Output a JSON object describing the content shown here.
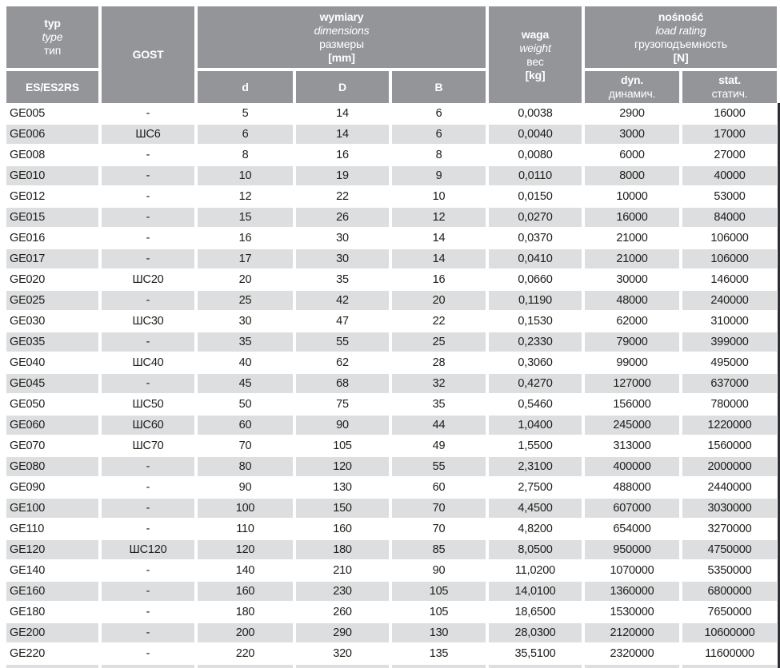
{
  "colors": {
    "header_bg": "#939598",
    "stripe_bg": "#dcdedf",
    "text": "#1d1d1b",
    "header_text": "#ffffff",
    "edge_line": "#2f2f33"
  },
  "header": {
    "typ": {
      "l1": "typ",
      "l2": "type",
      "l3": "тип"
    },
    "series": "ES/ES2RS",
    "gost": "GOST",
    "dims": {
      "l1": "wymiary",
      "l2": "dimensions",
      "l3": "размеры",
      "l4": "[mm]"
    },
    "d": "d",
    "D": "D",
    "B": "B",
    "weight": {
      "l1": "waga",
      "l2": "weight",
      "l3": "вес",
      "l4": "[kg]"
    },
    "load": {
      "l1": "nośność",
      "l2": "load rating",
      "l3": "грузоподъемность",
      "l4": "[N]"
    },
    "dyn": {
      "l1": "dyn.",
      "l2": "динамич."
    },
    "stat": {
      "l1": "stat.",
      "l2": "статич."
    }
  },
  "columns": [
    "type",
    "gost",
    "d",
    "D",
    "B",
    "weight",
    "dyn",
    "stat"
  ],
  "rows": [
    [
      "GE005",
      "-",
      "5",
      "14",
      "6",
      "0,0038",
      "2900",
      "16000"
    ],
    [
      "GE006",
      "ШС6",
      "6",
      "14",
      "6",
      "0,0040",
      "3000",
      "17000"
    ],
    [
      "GE008",
      "-",
      "8",
      "16",
      "8",
      "0,0080",
      "6000",
      "27000"
    ],
    [
      "GE010",
      "-",
      "10",
      "19",
      "9",
      "0,0110",
      "8000",
      "40000"
    ],
    [
      "GE012",
      "-",
      "12",
      "22",
      "10",
      "0,0150",
      "10000",
      "53000"
    ],
    [
      "GE015",
      "-",
      "15",
      "26",
      "12",
      "0,0270",
      "16000",
      "84000"
    ],
    [
      "GE016",
      "-",
      "16",
      "30",
      "14",
      "0,0370",
      "21000",
      "106000"
    ],
    [
      "GE017",
      "-",
      "17",
      "30",
      "14",
      "0,0410",
      "21000",
      "106000"
    ],
    [
      "GE020",
      "ШС20",
      "20",
      "35",
      "16",
      "0,0660",
      "30000",
      "146000"
    ],
    [
      "GE025",
      "-",
      "25",
      "42",
      "20",
      "0,1190",
      "48000",
      "240000"
    ],
    [
      "GE030",
      "ШС30",
      "30",
      "47",
      "22",
      "0,1530",
      "62000",
      "310000"
    ],
    [
      "GE035",
      "-",
      "35",
      "55",
      "25",
      "0,2330",
      "79000",
      "399000"
    ],
    [
      "GE040",
      "ШС40",
      "40",
      "62",
      "28",
      "0,3060",
      "99000",
      "495000"
    ],
    [
      "GE045",
      "-",
      "45",
      "68",
      "32",
      "0,4270",
      "127000",
      "637000"
    ],
    [
      "GE050",
      "ШС50",
      "50",
      "75",
      "35",
      "0,5460",
      "156000",
      "780000"
    ],
    [
      "GE060",
      "ШС60",
      "60",
      "90",
      "44",
      "1,0400",
      "245000",
      "1220000"
    ],
    [
      "GE070",
      "ШС70",
      "70",
      "105",
      "49",
      "1,5500",
      "313000",
      "1560000"
    ],
    [
      "GE080",
      "-",
      "80",
      "120",
      "55",
      "2,3100",
      "400000",
      "2000000"
    ],
    [
      "GE090",
      "-",
      "90",
      "130",
      "60",
      "2,7500",
      "488000",
      "2440000"
    ],
    [
      "GE100",
      "-",
      "100",
      "150",
      "70",
      "4,4500",
      "607000",
      "3030000"
    ],
    [
      "GE110",
      "-",
      "110",
      "160",
      "70",
      "4,8200",
      "654000",
      "3270000"
    ],
    [
      "GE120",
      "ШС120",
      "120",
      "180",
      "85",
      "8,0500",
      "950000",
      "4750000"
    ],
    [
      "GE140",
      "-",
      "140",
      "210",
      "90",
      "11,0200",
      "1070000",
      "5350000"
    ],
    [
      "GE160",
      "-",
      "160",
      "230",
      "105",
      "14,0100",
      "1360000",
      "6800000"
    ],
    [
      "GE180",
      "-",
      "180",
      "260",
      "105",
      "18,6500",
      "1530000",
      "7650000"
    ],
    [
      "GE200",
      "-",
      "200",
      "290",
      "130",
      "28,0300",
      "2120000",
      "10600000"
    ],
    [
      "GE220",
      "-",
      "220",
      "320",
      "135",
      "35,5100",
      "2320000",
      "11600000"
    ]
  ]
}
